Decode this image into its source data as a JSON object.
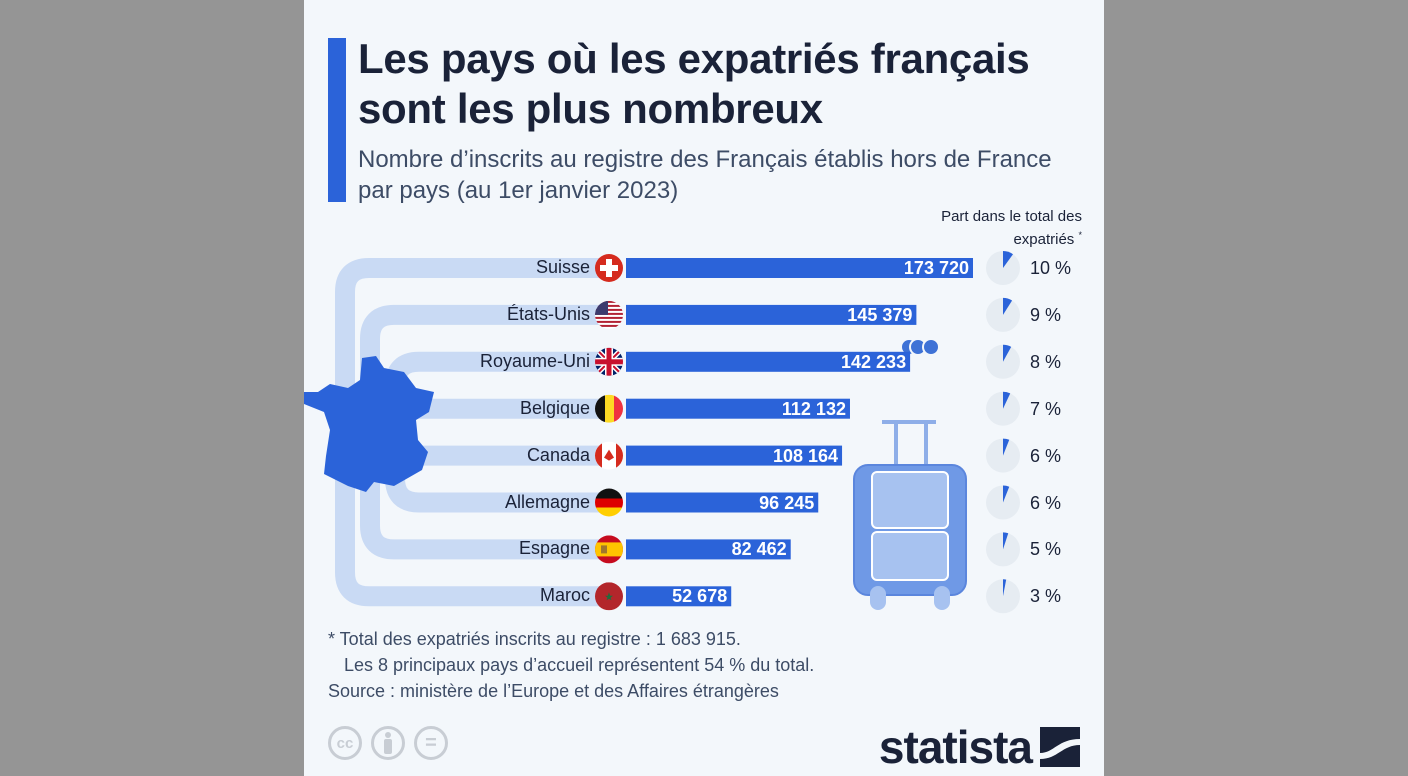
{
  "chart_data": {
    "type": "bar",
    "orientation": "horizontal",
    "title": "Les pays où les expatriés français sont les plus nombreux",
    "subtitle": "Nombre d’inscrits au registre des Français établis hors de France par pays (au 1er janvier 2023)",
    "share_header": "Part dans le total des expatriés",
    "share_header_mark": "*",
    "categories": [
      "Suisse",
      "États-Unis",
      "Royaume-Uni",
      "Belgique",
      "Canada",
      "Allemagne",
      "Espagne",
      "Maroc"
    ],
    "flags": [
      "ch-flag-icon",
      "us-flag-icon",
      "uk-flag-icon",
      "be-flag-icon",
      "ca-flag-icon",
      "de-flag-icon",
      "es-flag-icon",
      "ma-flag-icon"
    ],
    "values": [
      173720,
      145379,
      142233,
      112132,
      108164,
      96245,
      82462,
      52678
    ],
    "value_labels": [
      "173 720",
      "145 379",
      "142 233",
      "112 132",
      "108 164",
      "96 245",
      "82 462",
      "52 678"
    ],
    "shares": [
      10,
      9,
      8,
      7,
      6,
      6,
      5,
      3
    ],
    "share_labels": [
      "10 %",
      "9 %",
      "8 %",
      "7 %",
      "6 %",
      "6 %",
      "5 %",
      "3 %"
    ],
    "colors": {
      "bar": "#2b63d9",
      "track": "#c9daf4",
      "pie_bg": "#e6ecf2",
      "text": "#1a2238"
    }
  },
  "notes": {
    "line1": "* Total des expatriés inscrits au registre : 1 683 915.",
    "line2": "Les 8 principaux pays d’accueil représentent 54 % du total.",
    "source": "Source : ministère de l’Europe et des Affaires étrangères"
  },
  "license_icons": [
    "cc-icon",
    "attribution-icon",
    "no-derivatives-icon"
  ],
  "license_glyphs": {
    "cc": "cc",
    "eq": "="
  },
  "brand": "statista"
}
